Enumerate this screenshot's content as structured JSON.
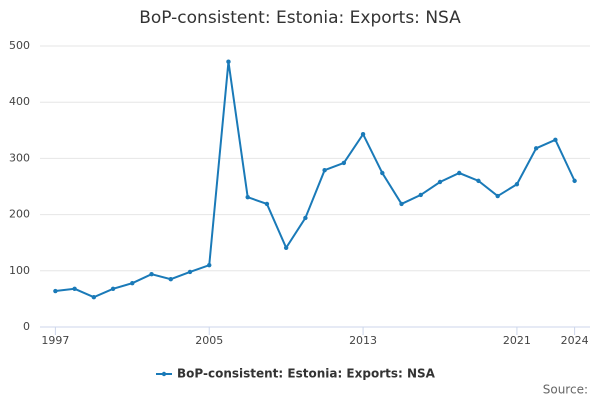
{
  "chart_data": {
    "type": "line",
    "title": "BoP-consistent: Estonia: Exports: NSA",
    "x": [
      1997,
      1998,
      1999,
      2000,
      2001,
      2002,
      2003,
      2004,
      2005,
      2006,
      2007,
      2008,
      2009,
      2010,
      2011,
      2012,
      2013,
      2014,
      2015,
      2016,
      2017,
      2018,
      2019,
      2020,
      2021,
      2022,
      2023,
      2024
    ],
    "series": [
      {
        "name": "BoP-consistent: Estonia: Exports: NSA",
        "color": "#1a7ab8",
        "values": [
          64,
          68,
          53,
          68,
          78,
          94,
          85,
          98,
          110,
          472,
          231,
          219,
          141,
          194,
          279,
          292,
          343,
          274,
          219,
          235,
          258,
          274,
          260,
          233,
          254,
          318,
          333,
          260
        ]
      }
    ],
    "xlim": [
      1996.2,
      2024.8
    ],
    "xticks": [
      1997,
      2005,
      2013,
      2021,
      2024
    ],
    "ylim": [
      0,
      500
    ],
    "yticks": [
      0,
      100,
      200,
      300,
      400,
      500
    ],
    "grid": true,
    "legend": "bottom",
    "source": "Source:"
  }
}
